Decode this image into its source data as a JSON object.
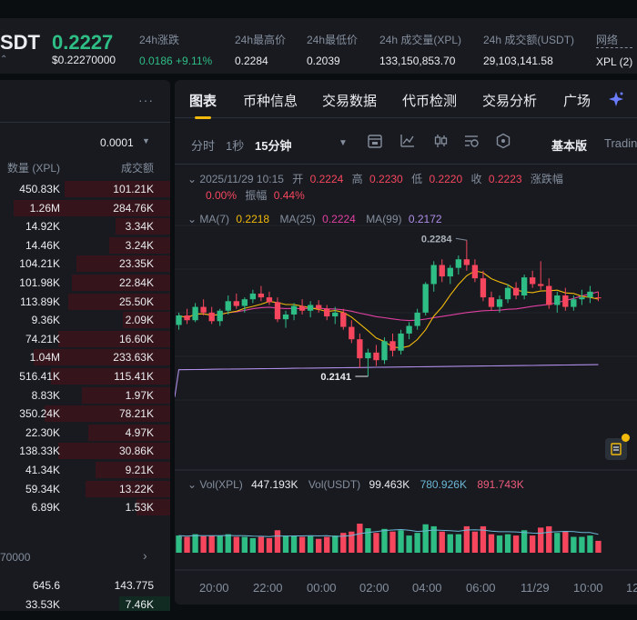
{
  "ticker": {
    "symbol": "SDT",
    "symbol_sub": "⌃",
    "price": "0.2227",
    "price_usd": "$0.22270000",
    "stats": [
      {
        "label": "24h涨跌",
        "value": "0.0186 +9.11%"
      },
      {
        "label": "24h最高价",
        "value": "0.2284"
      },
      {
        "label": "24h最低价",
        "value": "0.2039"
      },
      {
        "label": "24h 成交量(XPL)",
        "value": "133,150,853.70"
      },
      {
        "label": "24h 成交额(USDT)",
        "value": "29,103,141.58"
      },
      {
        "label": "网络",
        "value": "XPL (2)"
      }
    ]
  },
  "orderbook": {
    "more_label": "···",
    "precision": "0.0001",
    "col_qty": "数量 (XPL)",
    "col_amount": "成交额",
    "asks": [
      {
        "qty": "450.83K",
        "amount": "101.21K",
        "depth": 0.62
      },
      {
        "qty": "1.26M",
        "amount": "284.76K",
        "depth": 0.92
      },
      {
        "qty": "14.92K",
        "amount": "3.34K",
        "depth": 0.32
      },
      {
        "qty": "14.46K",
        "amount": "3.24K",
        "depth": 0.36
      },
      {
        "qty": "104.21K",
        "amount": "23.35K",
        "depth": 0.55
      },
      {
        "qty": "101.98K",
        "amount": "22.84K",
        "depth": 0.58
      },
      {
        "qty": "113.89K",
        "amount": "25.50K",
        "depth": 0.6
      },
      {
        "qty": "9.36K",
        "amount": "2.09K",
        "depth": 0.28
      },
      {
        "qty": "74.21K",
        "amount": "16.60K",
        "depth": 0.66
      },
      {
        "qty": "1.04M",
        "amount": "233.63K",
        "depth": 0.8
      },
      {
        "qty": "516.41K",
        "amount": "115.41K",
        "depth": 0.7
      },
      {
        "qty": "8.83K",
        "amount": "1.97K",
        "depth": 0.52
      },
      {
        "qty": "350.24K",
        "amount": "78.21K",
        "depth": 0.74
      },
      {
        "qty": "22.30K",
        "amount": "4.97K",
        "depth": 0.48
      },
      {
        "qty": "138.33K",
        "amount": "30.86K",
        "depth": 0.66
      },
      {
        "qty": "41.34K",
        "amount": "9.21K",
        "depth": 0.44
      },
      {
        "qty": "59.34K",
        "amount": "13.22K",
        "depth": 0.5
      },
      {
        "qty": "6.89K",
        "amount": "1.53K",
        "depth": 0.2
      }
    ],
    "mid_price": "70000",
    "bids": [
      {
        "qty": "645.6",
        "amount": "143.775",
        "depth": 0.0
      },
      {
        "qty": "33.53K",
        "amount": "7.46K",
        "depth": 0.3
      }
    ]
  },
  "tabs": [
    "图表",
    "币种信息",
    "交易数据",
    "代币检测",
    "交易分析",
    "广场"
  ],
  "toolbar": {
    "time": "分时",
    "sec1": "1秒",
    "interval": "15分钟",
    "mode": "基本版",
    "tradingview": "Tradin"
  },
  "legend": {
    "date": "2025/11/29 10:15",
    "open_lbl": "开",
    "open": "0.2224",
    "high_lbl": "高",
    "high": "0.2230",
    "low_lbl": "低",
    "low": "0.2220",
    "close_lbl": "收",
    "close": "0.2223",
    "change_lbl": "涨跌幅",
    "change": "0.00%",
    "amp_lbl": "振幅",
    "amp": "0.44%",
    "ma7_lbl": "MA(7)",
    "ma7": "0.2218",
    "ma25_lbl": "MA(25)",
    "ma25": "0.2224",
    "ma99_lbl": "MA(99)",
    "ma99": "0.2172",
    "peak_label": "0.2284",
    "trough_label": "0.2141"
  },
  "volume": {
    "vxpl_lbl": "Vol(XPL)",
    "vxpl": "447.193K",
    "vusdt_lbl": "Vol(USDT)",
    "vusdt": "99.463K",
    "ma1": "780.926K",
    "ma2": "891.743K"
  },
  "xaxis": [
    "20:00",
    "22:00",
    "00:00",
    "02:00",
    "04:00",
    "06:00",
    "11/29",
    "10:00",
    "12"
  ],
  "colors": {
    "up": "#2ebd85",
    "down": "#f6465d",
    "ma7": "#f0b90b",
    "ma25": "#e040a0",
    "ma99": "#b08ee8",
    "accent": "#f0b90b"
  },
  "chart_data": {
    "type": "candlestick",
    "interval": "15分钟",
    "ylim": [
      0.212,
      0.229
    ],
    "candles": [
      [
        0.2195,
        0.2208,
        0.219,
        0.2205
      ],
      [
        0.2205,
        0.2212,
        0.2196,
        0.22
      ],
      [
        0.22,
        0.2218,
        0.2198,
        0.2214
      ],
      [
        0.2214,
        0.2222,
        0.2205,
        0.2208
      ],
      [
        0.2208,
        0.2214,
        0.2196,
        0.2199
      ],
      [
        0.2199,
        0.2212,
        0.2194,
        0.221
      ],
      [
        0.221,
        0.2226,
        0.2206,
        0.222
      ],
      [
        0.222,
        0.2228,
        0.2212,
        0.2215
      ],
      [
        0.2215,
        0.2224,
        0.2208,
        0.2222
      ],
      [
        0.2222,
        0.2232,
        0.2218,
        0.2228
      ],
      [
        0.2228,
        0.2236,
        0.222,
        0.2224
      ],
      [
        0.2224,
        0.223,
        0.2216,
        0.2219
      ],
      [
        0.2219,
        0.2224,
        0.2198,
        0.2201
      ],
      [
        0.2201,
        0.221,
        0.2192,
        0.2206
      ],
      [
        0.2206,
        0.2218,
        0.22,
        0.2215
      ],
      [
        0.2215,
        0.2222,
        0.2206,
        0.221
      ],
      [
        0.221,
        0.222,
        0.2203,
        0.2216
      ],
      [
        0.2216,
        0.2221,
        0.2208,
        0.2212
      ],
      [
        0.2212,
        0.2216,
        0.22,
        0.2204
      ],
      [
        0.2204,
        0.2214,
        0.2196,
        0.2208
      ],
      [
        0.2208,
        0.2212,
        0.219,
        0.2193
      ],
      [
        0.2193,
        0.22,
        0.2176,
        0.218
      ],
      [
        0.218,
        0.2186,
        0.215,
        0.216
      ],
      [
        0.216,
        0.217,
        0.2141,
        0.2166
      ],
      [
        0.2166,
        0.2174,
        0.2152,
        0.2158
      ],
      [
        0.2158,
        0.2182,
        0.2154,
        0.2178
      ],
      [
        0.2178,
        0.2186,
        0.2162,
        0.2168
      ],
      [
        0.2168,
        0.219,
        0.2164,
        0.2186
      ],
      [
        0.2186,
        0.2198,
        0.218,
        0.2194
      ],
      [
        0.2194,
        0.2212,
        0.219,
        0.2208
      ],
      [
        0.2208,
        0.224,
        0.2205,
        0.2238
      ],
      [
        0.2238,
        0.2262,
        0.223,
        0.2258
      ],
      [
        0.2258,
        0.2264,
        0.224,
        0.2246
      ],
      [
        0.2246,
        0.2258,
        0.2238,
        0.2255
      ],
      [
        0.2255,
        0.2268,
        0.2248,
        0.2264
      ],
      [
        0.2264,
        0.2284,
        0.2252,
        0.2258
      ],
      [
        0.2258,
        0.2264,
        0.224,
        0.2244
      ],
      [
        0.2244,
        0.2252,
        0.222,
        0.2224
      ],
      [
        0.2224,
        0.223,
        0.221,
        0.2214
      ],
      [
        0.2214,
        0.2226,
        0.2208,
        0.2222
      ],
      [
        0.2222,
        0.2238,
        0.2218,
        0.2234
      ],
      [
        0.2234,
        0.224,
        0.2222,
        0.2226
      ],
      [
        0.2226,
        0.2248,
        0.2222,
        0.2245
      ],
      [
        0.2245,
        0.2252,
        0.2234,
        0.2238
      ],
      [
        0.2238,
        0.2262,
        0.2232,
        0.2236
      ],
      [
        0.2236,
        0.2244,
        0.2212,
        0.2216
      ],
      [
        0.2216,
        0.223,
        0.2208,
        0.2226
      ],
      [
        0.2226,
        0.2234,
        0.221,
        0.2214
      ],
      [
        0.2214,
        0.2226,
        0.221,
        0.2222
      ],
      [
        0.2222,
        0.2232,
        0.2216,
        0.2224
      ],
      [
        0.2224,
        0.2236,
        0.2218,
        0.223
      ],
      [
        0.2224,
        0.223,
        0.222,
        0.2223
      ]
    ],
    "volume_max": 1200
  }
}
